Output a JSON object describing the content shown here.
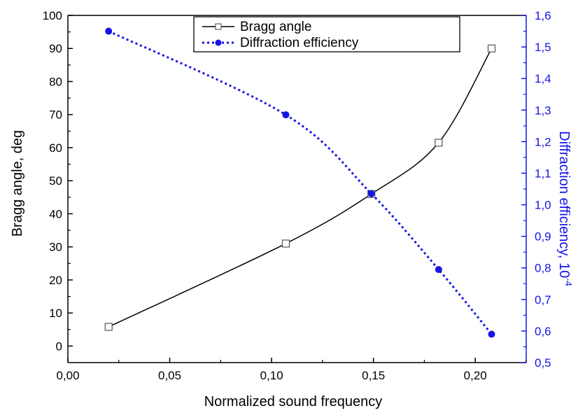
{
  "chart_data": {
    "type": "line",
    "xlabel": "Normalized sound frequency",
    "ylabel_left": "Bragg angle, deg",
    "ylabel_right_base": "Diffraction efficiency, 10",
    "ylabel_right_exp": "-4",
    "xlim": [
      0.0,
      0.225
    ],
    "ylim_left": [
      -5,
      100
    ],
    "ylim_right": [
      0.5,
      1.6
    ],
    "x_ticks": [
      "0,00",
      "0,05",
      "0,10",
      "0,15",
      "0,20"
    ],
    "y_left_ticks": [
      "0",
      "10",
      "20",
      "30",
      "40",
      "50",
      "60",
      "70",
      "80",
      "90",
      "100"
    ],
    "y_right_ticks": [
      "0,5",
      "0,6",
      "0,7",
      "0,8",
      "0,9",
      "1,0",
      "1,1",
      "1,2",
      "1,3",
      "1,4",
      "1,5",
      "1,6"
    ],
    "legend_position": "top-center",
    "series": [
      {
        "name": "Bragg angle",
        "axis": "left",
        "marker": "open-square",
        "line": "solid",
        "color": "#000000",
        "x": [
          0.02,
          0.107,
          0.149,
          0.182,
          0.208
        ],
        "y": [
          5.8,
          31.0,
          46.0,
          61.5,
          90.0
        ]
      },
      {
        "name": "Diffraction efficiency",
        "axis": "right",
        "marker": "filled-circle",
        "line": "dotted",
        "color": "#1515e6",
        "x": [
          0.02,
          0.107,
          0.149,
          0.182,
          0.208
        ],
        "y": [
          1.55,
          1.285,
          1.035,
          0.795,
          0.59
        ]
      }
    ],
    "colors": {
      "axis": "#000000",
      "right_axis": "#1515e6"
    }
  }
}
